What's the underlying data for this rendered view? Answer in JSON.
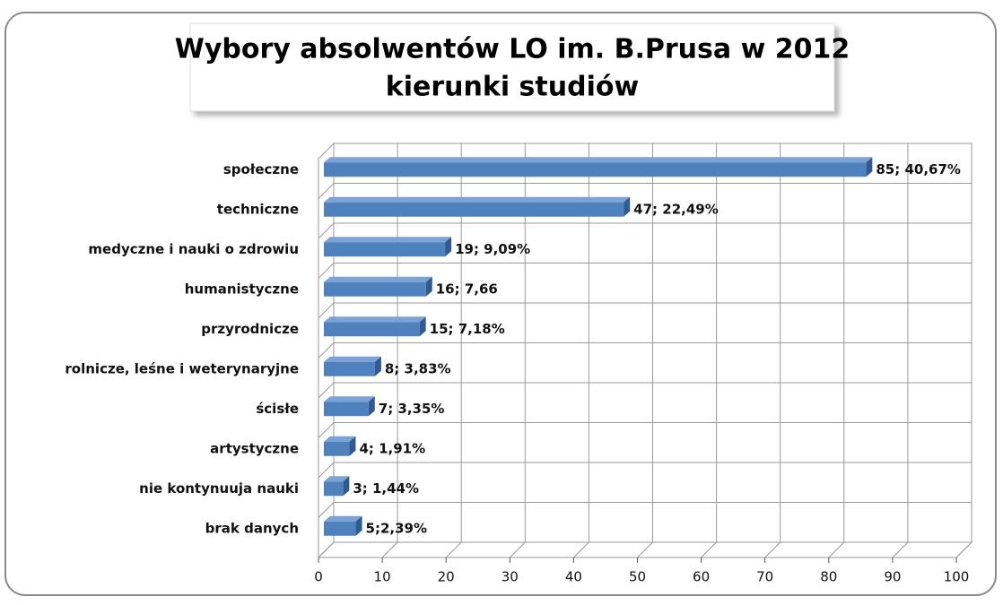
{
  "chart_data": {
    "type": "bar",
    "orientation": "horizontal",
    "title": "Wybory absolwentów LO im. B.Prusa w 2012",
    "subtitle": "kierunki studiów",
    "categories": [
      "społeczne",
      "techniczne",
      "medyczne i nauki o zdrowiu",
      "humanistyczne",
      "przyrodnicze",
      "rolnicze, leśne i weterynaryjne",
      "ścisłe",
      "artystyczne",
      "nie kontynuuja nauki",
      "brak  danych"
    ],
    "values": [
      85,
      47,
      19,
      16,
      15,
      8,
      7,
      4,
      3,
      5
    ],
    "value_labels": [
      "85; 40,67%",
      "47; 22,49%",
      "19; 9,09%",
      "16; 7,66",
      "15; 7,18%",
      "8; 3,83%",
      "7; 3,35%",
      "4; 1,91%",
      "3; 1,44%",
      "5;2,39%"
    ],
    "color": "#4f81bd",
    "xlim": [
      0,
      100
    ],
    "xticks": [
      0,
      10,
      20,
      30,
      40,
      50,
      60,
      70,
      80,
      90,
      100
    ],
    "grid": true
  }
}
